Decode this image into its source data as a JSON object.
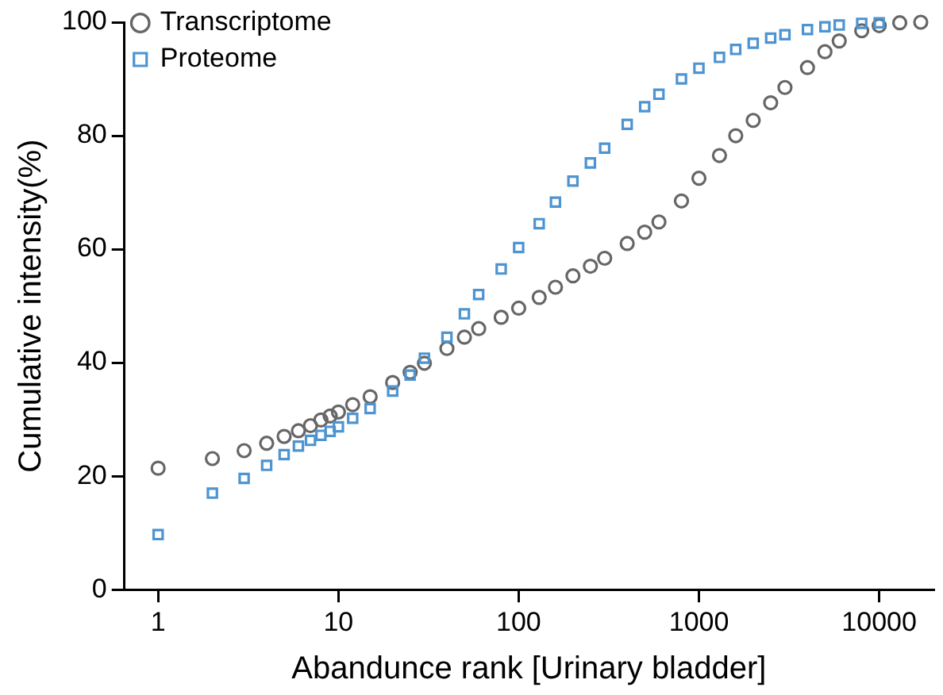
{
  "chart_data": {
    "type": "scatter",
    "xlabel": "Abandunce rank [Urinary bladder]",
    "ylabel": "Cumulative intensity(%)",
    "log": "x",
    "xlim": [
      0.65,
      20000
    ],
    "xticks": [
      1,
      10,
      100,
      1000,
      10000
    ],
    "ylim": [
      0,
      100
    ],
    "yticks": [
      0,
      20,
      40,
      60,
      80,
      100
    ],
    "grid": false,
    "legend": "top left",
    "x": [
      1,
      2,
      3,
      4,
      5,
      6,
      7,
      8,
      9,
      10,
      12,
      15,
      20,
      25,
      30,
      40,
      50,
      60,
      80,
      100,
      130,
      160,
      200,
      250,
      300,
      400,
      500,
      600,
      800,
      1000,
      1300,
      1600,
      2000,
      2500,
      3000,
      4000,
      5000,
      6000,
      8000,
      10000,
      13000,
      17000
    ],
    "series": [
      {
        "name": "Transcriptome",
        "color": "#666666",
        "marker": "circle",
        "values": [
          21.4,
          23.1,
          24.5,
          25.8,
          27,
          28,
          28.9,
          29.9,
          30.6,
          31.3,
          32.6,
          34,
          36.5,
          38.3,
          39.9,
          42.5,
          44.5,
          46,
          48,
          49.6,
          51.5,
          53.3,
          55.3,
          57,
          58.4,
          61,
          63,
          64.8,
          68.5,
          72.5,
          76.5,
          80,
          82.7,
          85.8,
          88.5,
          92,
          94.8,
          96.7,
          98.5,
          99.4,
          99.9,
          100
        ]
      },
      {
        "name": "Proteome",
        "color": "#4d94d1",
        "marker": "square",
        "values": [
          9.7,
          17,
          19.6,
          21.9,
          23.8,
          25.3,
          26.3,
          27.2,
          27.9,
          28.7,
          30.2,
          31.9,
          35,
          37.8,
          40.8,
          44.5,
          48.6,
          52,
          56.5,
          60.3,
          64.5,
          68.3,
          72,
          75.2,
          77.8,
          82,
          85.1,
          87.3,
          90,
          91.9,
          93.8,
          95.2,
          96.3,
          97.2,
          97.8,
          98.7,
          99.2,
          99.5,
          99.8,
          99.9,
          null,
          null
        ]
      }
    ]
  }
}
